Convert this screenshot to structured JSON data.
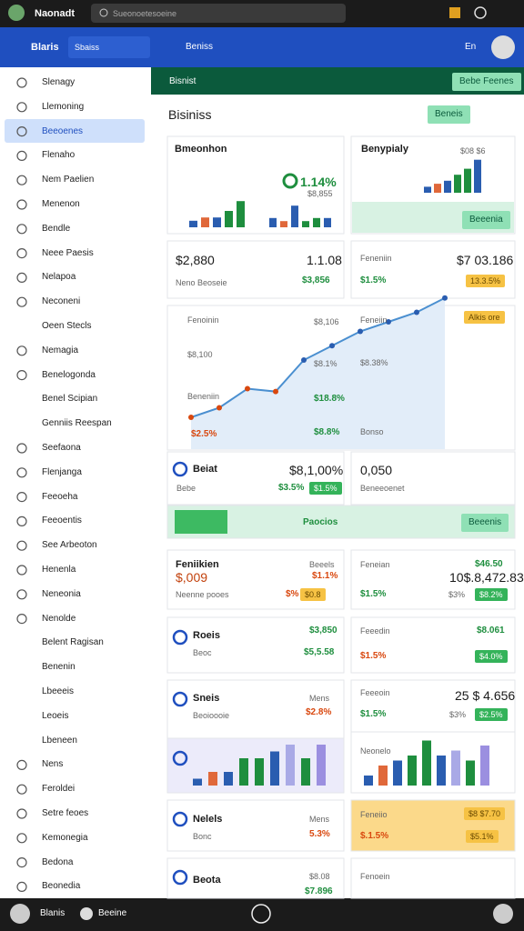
{
  "topbar": {
    "app_name": "Naonadt",
    "search": "Sueonoetesoeine"
  },
  "header": {
    "title": "Blaris",
    "tab": "Sbaiss",
    "section": "Beniss",
    "user": "En"
  },
  "sidebar": {
    "items": [
      "Slenagy",
      "Llemoning",
      "Beeoenes",
      "Flenaho",
      "Nem Paelien",
      "Menenon",
      "Bendle",
      "Neee Paesis",
      "Nelapoa",
      "Neconeni",
      "Oeen Stecls",
      "Nemagia",
      "Benelogonda",
      "Benel Scipian",
      "Genniis Reespan",
      "Seefaona",
      "Flenjanga",
      "Feeoeha",
      "Feeoentis",
      "See Arbeoton",
      "Henenla",
      "Neneonia",
      "Nenolde",
      "Belent Ragisan",
      "Benenin",
      "Lbeeeis",
      "Leoeis",
      "Lbeneen",
      "Nens",
      "Feroldei",
      "Setre feoes",
      "Kemonegia",
      "Bedona",
      "Beonedia"
    ]
  },
  "toolbar": {
    "dropdown": "Bisnist",
    "button": "Bebe Feenes"
  },
  "page": {
    "title": "Bisiniss",
    "button": "Beneis"
  },
  "cards": [
    {
      "title": "Bmeonhon",
      "change": "1.14%",
      "amount": "$8,855",
      "bars": [
        2,
        3,
        3,
        5,
        8
      ],
      "bars2": [
        3,
        2,
        7,
        2,
        3,
        3
      ]
    },
    {
      "title": "Benypialy",
      "amount": "$08 $6",
      "button": "Beeenia",
      "bars": [
        2,
        3,
        4,
        6,
        8,
        11
      ]
    },
    {
      "amount": "$2,880",
      "label": "Neno Beoseie",
      "value": "1.1.08",
      "change": "$3,856"
    },
    {
      "title": "Feneniin",
      "amount": "$7 03.186",
      "change": "$1.5%",
      "badge": "13.3.5%"
    },
    {
      "labels": [
        "Fenoinin",
        "Beneniin",
        "Feneiin"
      ],
      "badge": "Alkis ore",
      "notes": [
        "$8,106",
        "$8,100",
        "$8.1%",
        "$18.8%",
        "$2.5%",
        "$8.8%",
        "$8.38%",
        "Bonso"
      ],
      "values": [
        2,
        3,
        5,
        4.7,
        8,
        9.5,
        11,
        12,
        13,
        14.5
      ]
    },
    {
      "title": "Beiat",
      "amount": "$8,1,00%",
      "label": "Bebe",
      "change": "$3.5%",
      "badge": "$1.5%"
    },
    {
      "amount": "0,050",
      "label": "Beneeoenet"
    },
    {
      "label": "Paocios",
      "button": "Beeenis"
    },
    {
      "title": "Feniikien",
      "right": "Beeels",
      "amount": "$,009",
      "change": "$1.1%",
      "label": "Neenne pooes",
      "small": "$%",
      "badge": "$0.8"
    },
    {
      "title": "Feneian",
      "right": "$46.50",
      "amount": "10$.8,472.83",
      "change": "$1.5%",
      "small": "$3%",
      "badge": "$8.2%"
    },
    {
      "title": "Roeis",
      "right": "$3,850",
      "label": "Beoc",
      "change": "$5,5.58"
    },
    {
      "title": "Feeedin",
      "right": "$8.061",
      "change": "$1.5%",
      "badge": "$4.0%"
    },
    {
      "title": "Sneis",
      "right": "Mens",
      "label": "Beoioooie",
      "change": "$2.8%"
    },
    {
      "title": "Feeeoin",
      "amount": "25 $ 4.656",
      "change": "$1.5%",
      "small": "$3%",
      "badge": "$2.5%"
    },
    {
      "bars": [
        1,
        2,
        2,
        4,
        4,
        5,
        6,
        4,
        6
      ]
    },
    {
      "title": "Neonelo",
      "bars": [
        2,
        4,
        5,
        6,
        9,
        6,
        7,
        5,
        8
      ]
    },
    {
      "title": "Nelels",
      "right": "Mens",
      "label": "Bonc",
      "change": "5.3%"
    },
    {
      "title": "Feneiio",
      "badge": "$8 $7.70",
      "change": "$.1.5%",
      "badge2": "$5.1%"
    },
    {
      "title": "Beota",
      "right": "$8.08",
      "change": "$7.896"
    },
    {
      "title": "Fenoein"
    }
  ],
  "footer": {
    "user": "Blanis",
    "status": "Beeine"
  }
}
